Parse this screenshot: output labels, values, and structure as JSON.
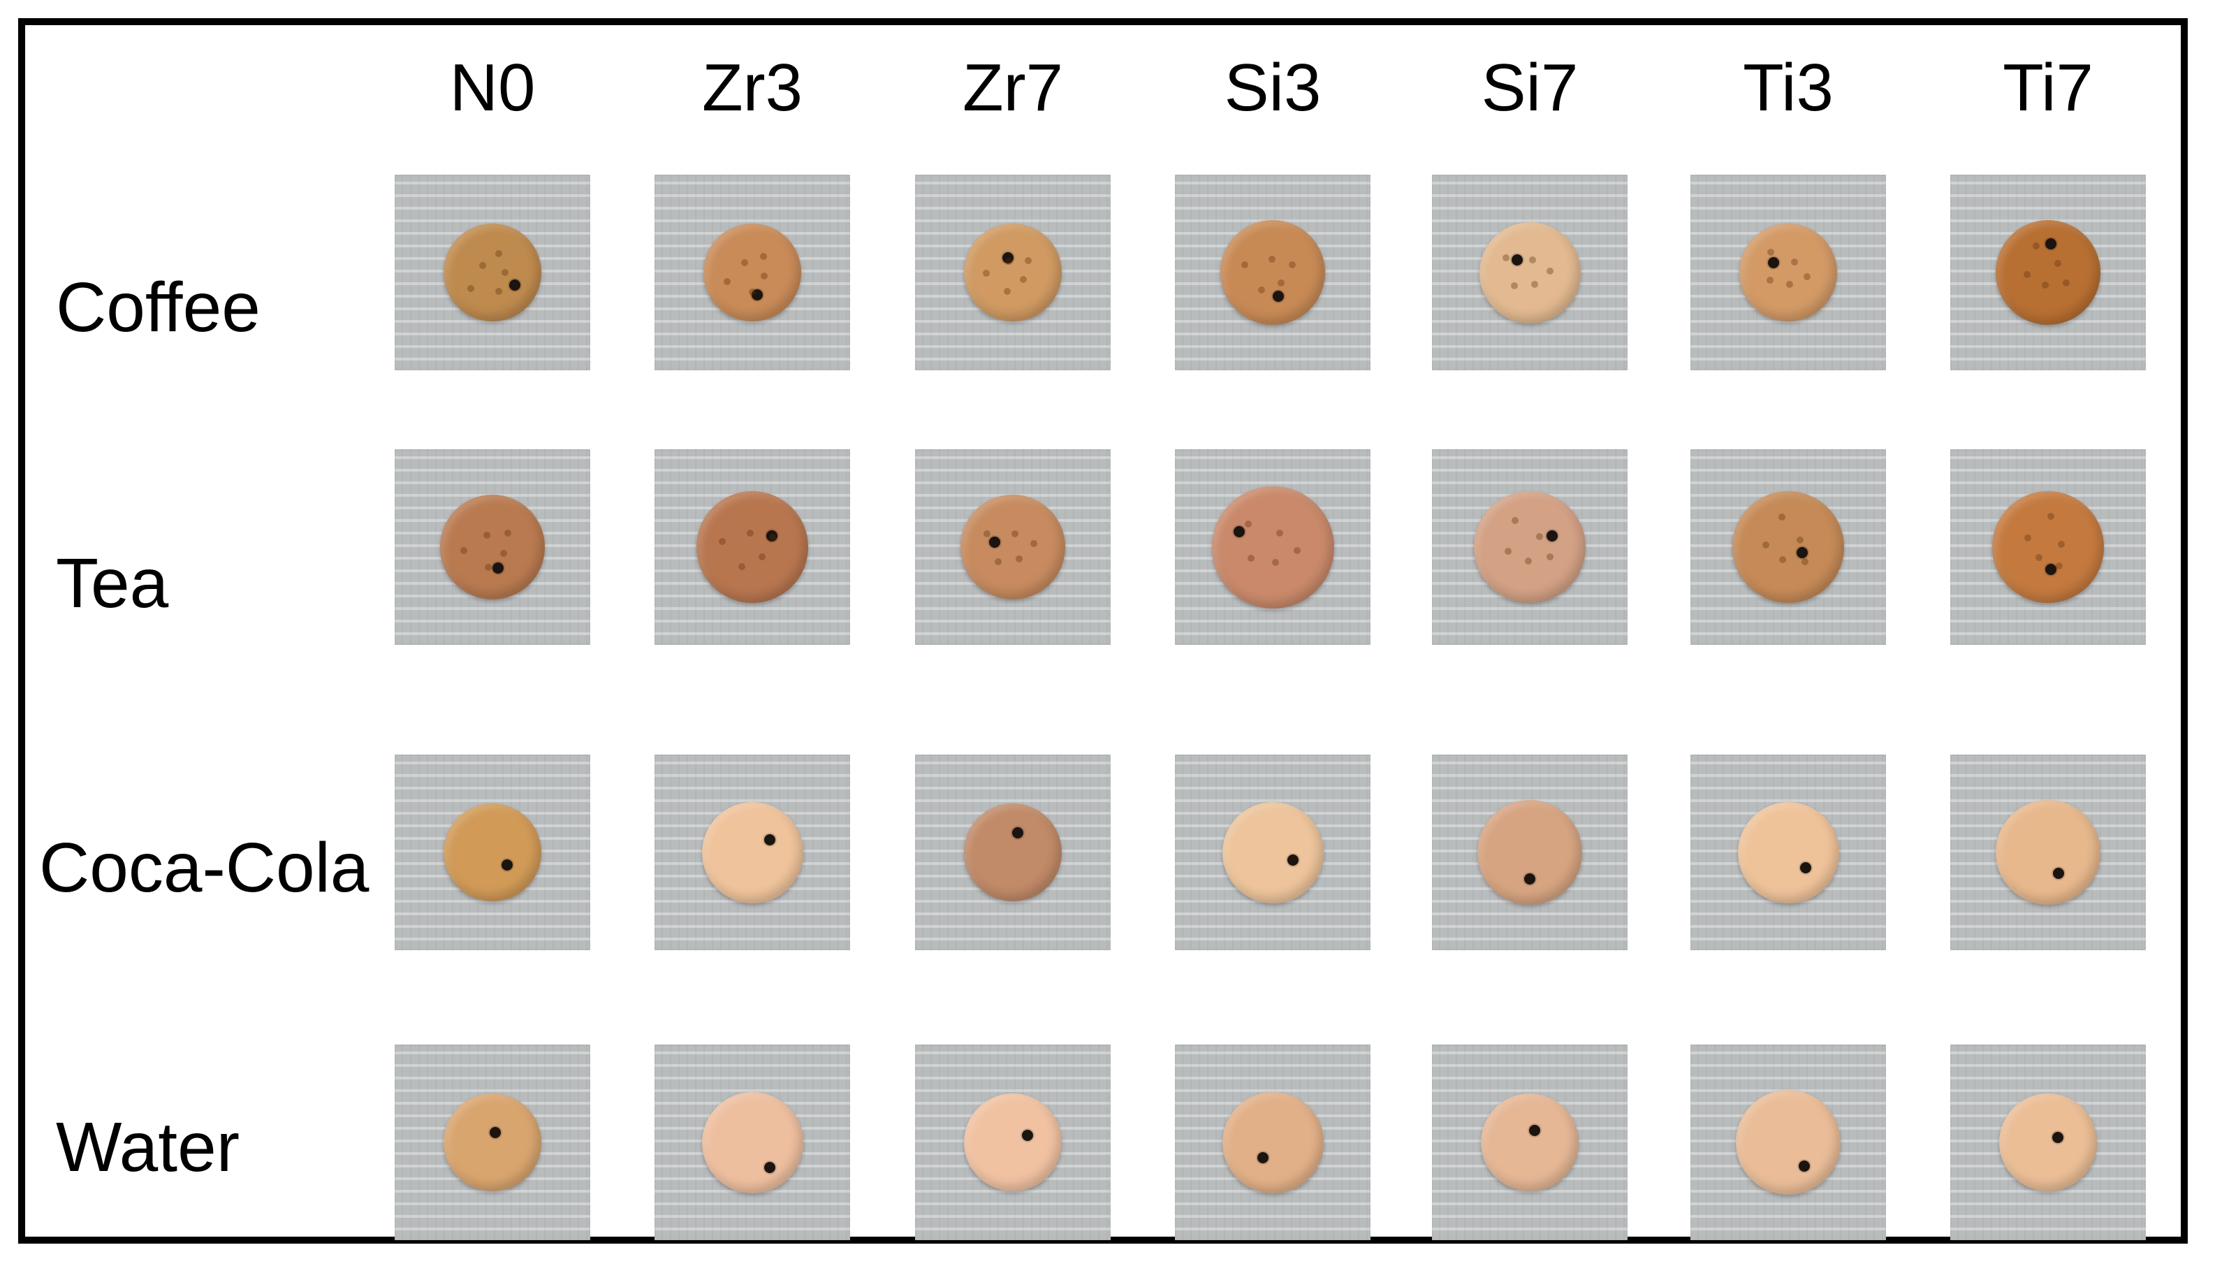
{
  "figure": {
    "columns": [
      "N0",
      "Zr3",
      "Zr7",
      "Si3",
      "Si7",
      "Ti3",
      "Ti7"
    ],
    "rows": [
      "Coffee",
      "Tea",
      "Coca-Cola",
      "Water"
    ],
    "colors": {
      "Coffee": [
        "#bf8a4e",
        "#c98b58",
        "#d09a62",
        "#c88a55",
        "#e2b990",
        "#d39a66",
        "#b86f32"
      ],
      "Tea": [
        "#b97a50",
        "#b8764f",
        "#c78b5f",
        "#c9896a",
        "#d3a184",
        "#c58a57",
        "#c47a3f"
      ],
      "Coca-Cola": [
        "#d19a57",
        "#efc39b",
        "#c18a68",
        "#edc49b",
        "#d6a481",
        "#efc39a",
        "#e7b88c"
      ],
      "Water": [
        "#d9a56f",
        "#eebf9f",
        "#f0c2a2",
        "#e2b088",
        "#e5b795",
        "#eabd98",
        "#ebbe96"
      ]
    },
    "tile_bg": "#b9bcbd"
  }
}
